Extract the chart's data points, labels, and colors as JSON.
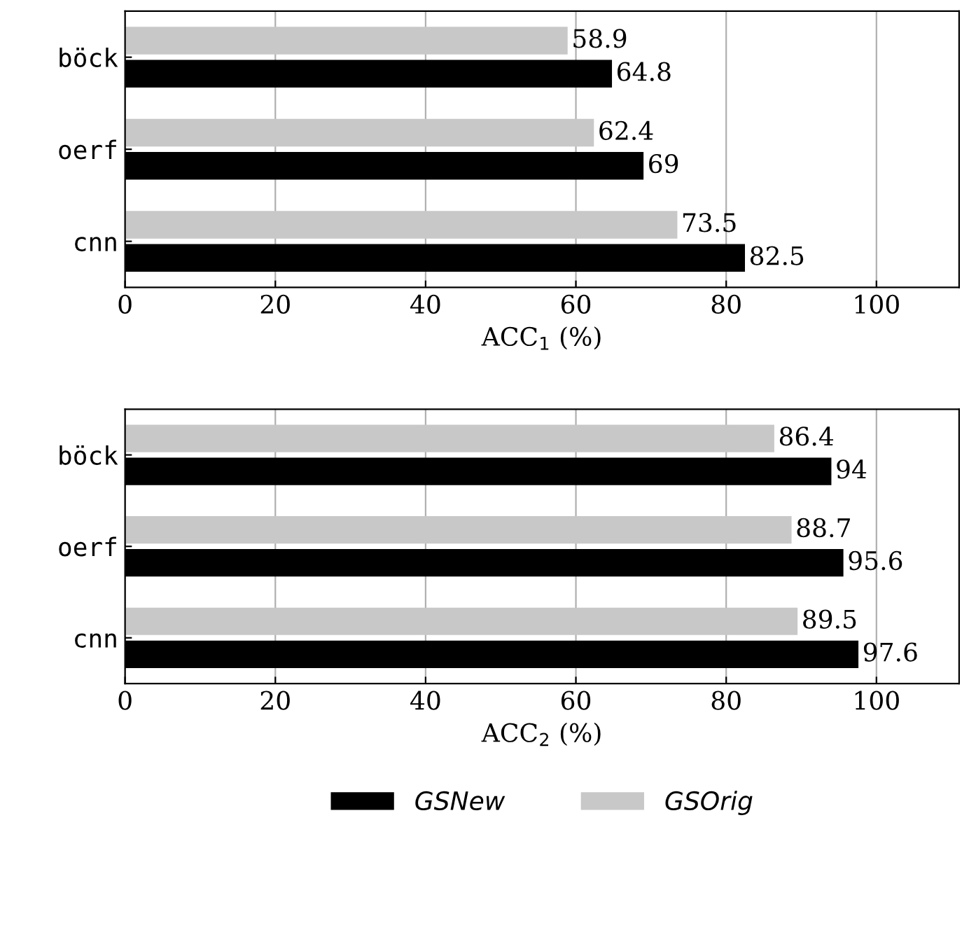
{
  "chart_data": [
    {
      "type": "bar",
      "orientation": "horizontal",
      "categories": [
        "böck",
        "oerf",
        "cnn"
      ],
      "xlabel": "ACC$_{1}$ (%)",
      "series": [
        {
          "name": "GSNew",
          "color": "#000000",
          "values": [
            64.8,
            69,
            82.5
          ]
        },
        {
          "name": "GSOrig",
          "color": "#c8c8c8",
          "values": [
            58.9,
            62.4,
            73.5
          ]
        }
      ],
      "xlim": [
        0,
        111
      ],
      "xticks": [
        0,
        20,
        40,
        60,
        80,
        100
      ],
      "grid": "x",
      "data_labels": true,
      "legend": "bottom"
    },
    {
      "type": "bar",
      "orientation": "horizontal",
      "categories": [
        "böck",
        "oerf",
        "cnn"
      ],
      "xlabel": "ACC$_{2}$ (%)",
      "series": [
        {
          "color": "#000000",
          "values": [
            94,
            95.6,
            97.6
          ]
        },
        {
          "color": "#c8c8c8",
          "values": [
            86.4,
            88.7,
            89.5
          ]
        }
      ],
      "xlim": [
        0,
        111
      ],
      "xticks": [
        0,
        20,
        40,
        60,
        80,
        100
      ],
      "grid": "x",
      "data_labels": true
    }
  ]
}
